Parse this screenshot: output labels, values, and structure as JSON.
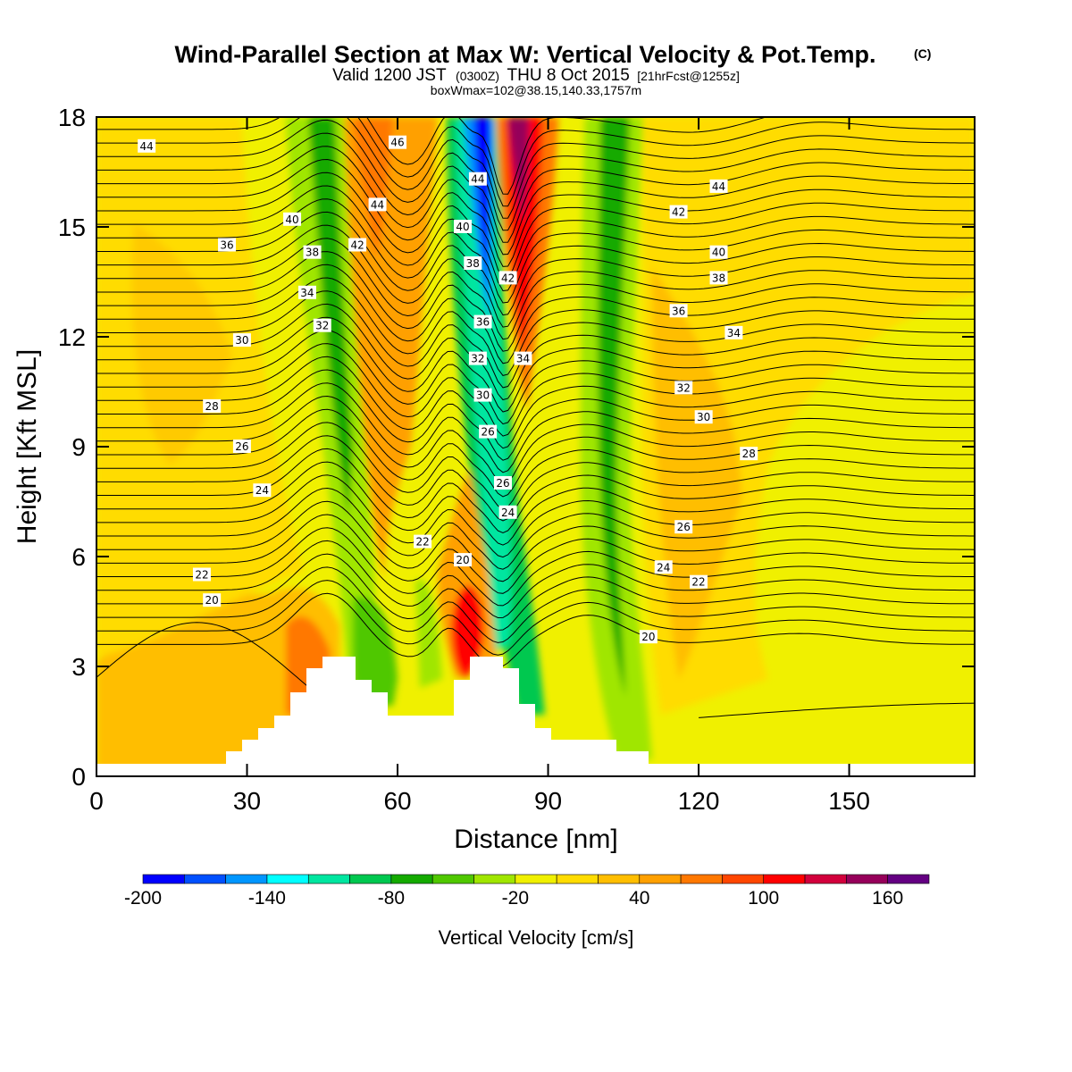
{
  "chart_data": {
    "type": "heatmap",
    "title": "Wind-Parallel Section at Max W: Vertical Velocity & Pot.Temp.",
    "title_mark": "(C)",
    "subtitle_a": "Valid 1200 JST",
    "subtitle_b": "(0300Z)",
    "subtitle_c": "THU 8 Oct 2015",
    "subtitle_d": "[21hrFcst@1255z]",
    "subtitle2": "boxWmax=102@38.15,140.33,1757m",
    "xlabel": "Distance [nm]",
    "ylabel": "Height [Kft MSL]",
    "xlim": [
      0,
      175
    ],
    "ylim": [
      0,
      18
    ],
    "xticks": [
      0,
      30,
      60,
      90,
      120,
      150
    ],
    "yticks": [
      0,
      3,
      6,
      9,
      12,
      15,
      18
    ],
    "colorbar": {
      "title": "Vertical Velocity [cm/s]",
      "levels": [
        -200,
        -180,
        -160,
        -140,
        -120,
        -100,
        -80,
        -60,
        -40,
        -20,
        0,
        20,
        40,
        60,
        80,
        100,
        120,
        140,
        160,
        180
      ],
      "labels": [
        "-200",
        "-140",
        "-80",
        "-20",
        "40",
        "100",
        "160"
      ],
      "label_values": [
        -200,
        -140,
        -80,
        -20,
        40,
        100,
        160
      ],
      "colors": [
        "#0000ff",
        "#0050ff",
        "#0096ff",
        "#00ffff",
        "#00e6a0",
        "#00c850",
        "#14aa00",
        "#50c800",
        "#a0e600",
        "#f0f000",
        "#ffdc00",
        "#ffbe00",
        "#ffa000",
        "#ff7800",
        "#ff4600",
        "#ff0000",
        "#d2003c",
        "#96005a",
        "#640082"
      ]
    },
    "theta_contour_labels": [
      {
        "text": "44",
        "x": 10,
        "y": 17.2
      },
      {
        "text": "40",
        "x": 39,
        "y": 15.2
      },
      {
        "text": "36",
        "x": 26,
        "y": 14.5
      },
      {
        "text": "38",
        "x": 43,
        "y": 14.3
      },
      {
        "text": "34",
        "x": 42,
        "y": 13.2
      },
      {
        "text": "32",
        "x": 45,
        "y": 12.3
      },
      {
        "text": "30",
        "x": 29,
        "y": 11.9
      },
      {
        "text": "28",
        "x": 23,
        "y": 10.1
      },
      {
        "text": "26",
        "x": 29,
        "y": 9.0
      },
      {
        "text": "24",
        "x": 33,
        "y": 7.8
      },
      {
        "text": "22",
        "x": 21,
        "y": 5.5
      },
      {
        "text": "20",
        "x": 23,
        "y": 4.8
      },
      {
        "text": "46",
        "x": 60,
        "y": 17.3
      },
      {
        "text": "44",
        "x": 56,
        "y": 15.6
      },
      {
        "text": "42",
        "x": 52,
        "y": 14.5
      },
      {
        "text": "22",
        "x": 65,
        "y": 6.4
      },
      {
        "text": "20",
        "x": 73,
        "y": 5.9
      },
      {
        "text": "44",
        "x": 76,
        "y": 16.3
      },
      {
        "text": "40",
        "x": 73,
        "y": 15.0
      },
      {
        "text": "38",
        "x": 75,
        "y": 14.0
      },
      {
        "text": "42",
        "x": 82,
        "y": 13.6
      },
      {
        "text": "36",
        "x": 77,
        "y": 12.4
      },
      {
        "text": "32",
        "x": 76,
        "y": 11.4
      },
      {
        "text": "34",
        "x": 85,
        "y": 11.4
      },
      {
        "text": "30",
        "x": 77,
        "y": 10.4
      },
      {
        "text": "26",
        "x": 78,
        "y": 9.4
      },
      {
        "text": "26",
        "x": 81,
        "y": 8.0
      },
      {
        "text": "24",
        "x": 82,
        "y": 7.2
      },
      {
        "text": "44",
        "x": 124,
        "y": 16.1
      },
      {
        "text": "42",
        "x": 116,
        "y": 15.4
      },
      {
        "text": "40",
        "x": 124,
        "y": 14.3
      },
      {
        "text": "38",
        "x": 124,
        "y": 13.6
      },
      {
        "text": "36",
        "x": 116,
        "y": 12.7
      },
      {
        "text": "34",
        "x": 127,
        "y": 12.1
      },
      {
        "text": "32",
        "x": 117,
        "y": 10.6
      },
      {
        "text": "30",
        "x": 121,
        "y": 9.8
      },
      {
        "text": "28",
        "x": 130,
        "y": 8.8
      },
      {
        "text": "26",
        "x": 117,
        "y": 6.8
      },
      {
        "text": "24",
        "x": 113,
        "y": 5.7
      },
      {
        "text": "22",
        "x": 120,
        "y": 5.3
      },
      {
        "text": "20",
        "x": 110,
        "y": 3.8
      }
    ]
  }
}
